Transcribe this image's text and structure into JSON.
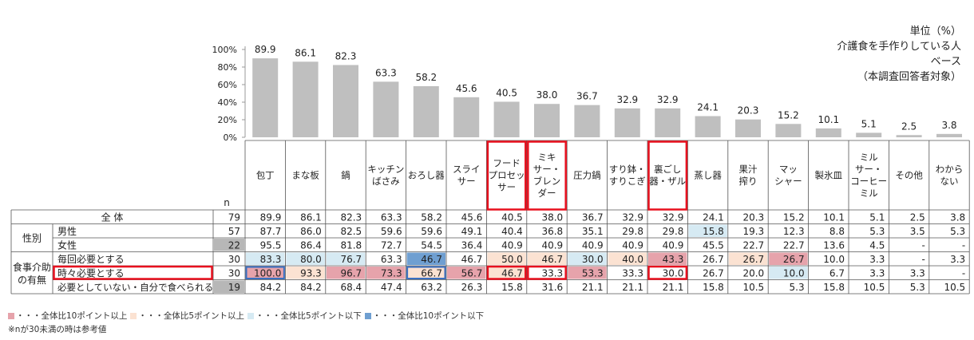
{
  "unit_note": {
    "unit": "単位（%）",
    "base_line1": "介護食を手作りしている人",
    "base_line2": "ベース",
    "base_line3": "（本調査回答者対象）"
  },
  "n_header": "n",
  "group_labels": {
    "gender": "性別",
    "assist": "食事介助の有無"
  },
  "legend": {
    "items": [
      {
        "label": "・・・全体比10ポイント以上",
        "color": "#e6a3ab"
      },
      {
        "label": "・・・全体比5ポイント以上",
        "color": "#fbe2d2"
      },
      {
        "label": "・・・全体比5ポイント以下",
        "color": "#d6eaf3"
      },
      {
        "label": "・・・全体比10ポイント以下",
        "color": "#6f9fd1"
      }
    ],
    "footnote": "※nが30未満の時は参考値"
  },
  "colors": {
    "bar": "#bfbfbf",
    "grid": "#999999",
    "highlight_border": "#e8101e",
    "blue_border": "#3a6fc0",
    "n_small_bg": "#b7b7b7"
  },
  "chart_data": {
    "type": "bar",
    "ylim": [
      0,
      100
    ],
    "yticks": [
      "0%",
      "20%",
      "40%",
      "60%",
      "80%",
      "100%"
    ],
    "categories": [
      [
        "包丁"
      ],
      [
        "まな板"
      ],
      [
        "鍋"
      ],
      [
        "キッチン",
        "ばさみ"
      ],
      [
        "おろし器"
      ],
      [
        "スライ",
        "サー"
      ],
      [
        "フード",
        "プロセッ",
        "サー"
      ],
      [
        "ミキ",
        "サー・",
        "ブレン",
        "ダー"
      ],
      [
        "圧力鍋"
      ],
      [
        "すり鉢・",
        "すりこぎ"
      ],
      [
        "裏ごし",
        "器・ザル"
      ],
      [
        "蒸し器"
      ],
      [
        "果汁",
        "搾り"
      ],
      [
        "マッ",
        "シャー"
      ],
      [
        "製氷皿"
      ],
      [
        "ミル",
        "サー・",
        "コーヒー",
        "ミル"
      ],
      [
        "その他"
      ],
      [
        "わから",
        "ない"
      ]
    ],
    "values": [
      89.9,
      86.1,
      82.3,
      63.3,
      58.2,
      45.6,
      40.5,
      38.0,
      36.7,
      32.9,
      32.9,
      24.1,
      20.3,
      15.2,
      10.1,
      5.1,
      2.5,
      3.8
    ],
    "value_labels": [
      "89.9",
      "86.1",
      "82.3",
      "63.3",
      "58.2",
      "45.6",
      "40.5",
      "38.0",
      "36.7",
      "32.9",
      "32.9",
      "24.1",
      "20.3",
      "15.2",
      "10.1",
      "5.1",
      "2.5",
      "3.8"
    ],
    "highlighted_columns": [
      6,
      7,
      10
    ],
    "table": {
      "rows": [
        {
          "label": "全 体",
          "n": "79",
          "values": [
            "89.9",
            "86.1",
            "82.3",
            "63.3",
            "58.2",
            "45.6",
            "40.5",
            "38.0",
            "36.7",
            "32.9",
            "32.9",
            "24.1",
            "20.3",
            "15.2",
            "10.1",
            "5.1",
            "2.5",
            "3.8"
          ],
          "shade": [
            0,
            0,
            0,
            0,
            0,
            0,
            0,
            0,
            0,
            0,
            0,
            0,
            0,
            0,
            0,
            0,
            0,
            0
          ]
        },
        {
          "label": "男性",
          "n": "57",
          "values": [
            "87.7",
            "86.0",
            "82.5",
            "59.6",
            "59.6",
            "49.1",
            "40.4",
            "36.8",
            "35.1",
            "29.8",
            "29.8",
            "15.8",
            "19.3",
            "12.3",
            "8.8",
            "5.3",
            "3.5",
            "5.3"
          ],
          "shade": [
            0,
            0,
            0,
            0,
            0,
            0,
            0,
            0,
            0,
            0,
            0,
            -1,
            0,
            0,
            0,
            0,
            0,
            0
          ]
        },
        {
          "label": "女性",
          "n": "22",
          "values": [
            "95.5",
            "86.4",
            "81.8",
            "72.7",
            "54.5",
            "36.4",
            "40.9",
            "40.9",
            "40.9",
            "40.9",
            "40.9",
            "45.5",
            "22.7",
            "22.7",
            "13.6",
            "4.5",
            "-",
            "-"
          ],
          "shade": [
            0,
            0,
            0,
            0,
            0,
            0,
            0,
            0,
            0,
            0,
            0,
            0,
            0,
            0,
            0,
            0,
            0,
            0
          ]
        },
        {
          "label": "毎回必要とする",
          "n": "30",
          "values": [
            "83.3",
            "80.0",
            "76.7",
            "63.3",
            "46.7",
            "46.7",
            "50.0",
            "46.7",
            "30.0",
            "40.0",
            "43.3",
            "26.7",
            "26.7",
            "26.7",
            "10.0",
            "3.3",
            "-",
            "3.3"
          ],
          "shade": [
            -1,
            -1,
            -1,
            0,
            -2,
            0,
            1,
            1,
            -1,
            1,
            2,
            0,
            1,
            2,
            0,
            0,
            0,
            0
          ]
        },
        {
          "label": "時々必要とする",
          "n": "30",
          "values": [
            "100.0",
            "93.3",
            "96.7",
            "73.3",
            "66.7",
            "56.7",
            "46.7",
            "33.3",
            "53.3",
            "33.3",
            "30.0",
            "26.7",
            "20.0",
            "10.0",
            "6.7",
            "3.3",
            "3.3",
            "-"
          ],
          "shade": [
            2,
            1,
            2,
            2,
            1,
            2,
            1,
            0,
            2,
            0,
            0,
            0,
            0,
            -1,
            0,
            0,
            0,
            0
          ]
        },
        {
          "label": "必要としていない・自分で食べられる",
          "n": "19",
          "values": [
            "84.2",
            "84.2",
            "68.4",
            "47.4",
            "63.2",
            "26.3",
            "15.8",
            "31.6",
            "21.1",
            "21.1",
            "21.1",
            "15.8",
            "10.5",
            "5.3",
            "15.8",
            "10.5",
            "5.3",
            "10.5"
          ],
          "shade": [
            0,
            0,
            0,
            0,
            0,
            0,
            0,
            0,
            0,
            0,
            0,
            0,
            0,
            0,
            0,
            0,
            0,
            0
          ]
        }
      ]
    }
  }
}
